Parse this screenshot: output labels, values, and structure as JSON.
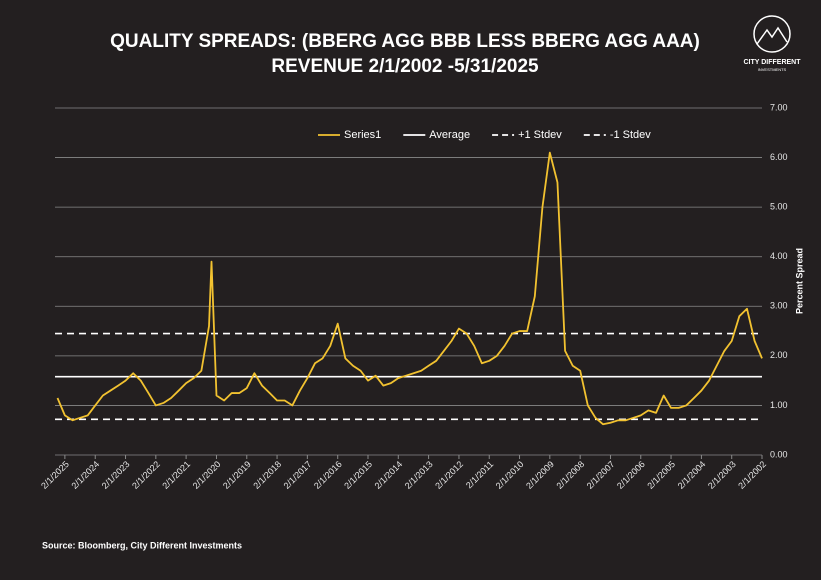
{
  "chart_data": {
    "type": "line",
    "title": "QUALITY SPREADS: (BBERG AGG BBB LESS BBERG AGG AAA)",
    "subtitle": "REVENUE 2/1/2002 -5/31/2025",
    "y_label": "Percent Spread",
    "source": "Source: Bloomberg, City Different Investments",
    "x": [
      "2002-02-01",
      "2002-05-01",
      "2002-08-01",
      "2002-11-01",
      "2003-02-01",
      "2003-05-01",
      "2003-08-01",
      "2003-11-01",
      "2004-02-01",
      "2004-05-01",
      "2004-08-01",
      "2004-11-01",
      "2005-02-01",
      "2005-05-01",
      "2005-08-01",
      "2005-11-01",
      "2006-02-01",
      "2006-05-01",
      "2006-08-01",
      "2006-11-01",
      "2007-02-01",
      "2007-05-01",
      "2007-08-01",
      "2007-11-01",
      "2008-02-01",
      "2008-05-01",
      "2008-08-01",
      "2008-11-01",
      "2009-02-01",
      "2009-05-01",
      "2009-08-01",
      "2009-11-01",
      "2010-02-01",
      "2010-05-01",
      "2010-08-01",
      "2010-11-01",
      "2011-02-01",
      "2011-05-01",
      "2011-08-01",
      "2011-11-01",
      "2012-02-01",
      "2012-05-01",
      "2012-08-01",
      "2012-11-01",
      "2013-02-01",
      "2013-05-01",
      "2013-08-01",
      "2013-11-01",
      "2014-02-01",
      "2014-05-01",
      "2014-08-01",
      "2014-11-01",
      "2015-02-01",
      "2015-05-01",
      "2015-08-01",
      "2015-11-01",
      "2016-02-01",
      "2016-05-01",
      "2016-08-01",
      "2016-11-01",
      "2017-02-01",
      "2017-05-01",
      "2017-08-01",
      "2017-11-01",
      "2018-02-01",
      "2018-05-01",
      "2018-08-01",
      "2018-11-01",
      "2019-02-01",
      "2019-05-01",
      "2019-08-01",
      "2019-11-01",
      "2020-02-01",
      "2020-04-01",
      "2020-05-01",
      "2020-08-01",
      "2020-11-01",
      "2021-02-01",
      "2021-05-01",
      "2021-08-01",
      "2021-11-01",
      "2022-02-01",
      "2022-05-01",
      "2022-08-01",
      "2022-11-01",
      "2023-02-01",
      "2023-05-01",
      "2023-08-01",
      "2023-11-01",
      "2024-02-01",
      "2024-05-01",
      "2024-08-01",
      "2024-11-01",
      "2025-02-01",
      "2025-05-01"
    ],
    "series": [
      {
        "name": "Series1",
        "color": "#f2c230",
        "values": [
          1.95,
          2.3,
          2.95,
          2.8,
          2.3,
          2.1,
          1.8,
          1.5,
          1.3,
          1.15,
          1.0,
          0.95,
          0.95,
          1.2,
          0.85,
          0.9,
          0.8,
          0.75,
          0.7,
          0.7,
          0.65,
          0.62,
          0.75,
          1.0,
          1.7,
          1.8,
          2.1,
          5.5,
          6.1,
          5.0,
          3.2,
          2.5,
          2.5,
          2.45,
          2.2,
          2.0,
          1.9,
          1.85,
          2.2,
          2.45,
          2.55,
          2.3,
          2.1,
          1.9,
          1.8,
          1.7,
          1.65,
          1.6,
          1.55,
          1.45,
          1.4,
          1.6,
          1.5,
          1.7,
          1.8,
          1.95,
          2.65,
          2.2,
          1.95,
          1.85,
          1.55,
          1.3,
          1.0,
          1.1,
          1.1,
          1.25,
          1.4,
          1.65,
          1.35,
          1.25,
          1.25,
          1.1,
          1.2,
          3.9,
          2.6,
          1.7,
          1.55,
          1.45,
          1.3,
          1.15,
          1.05,
          1.0,
          1.25,
          1.5,
          1.65,
          1.5,
          1.4,
          1.3,
          1.2,
          1.0,
          0.8,
          0.75,
          0.7,
          0.8,
          1.15
        ]
      }
    ],
    "reference_lines": [
      {
        "name": "Average",
        "value": 1.58,
        "color": "#ffffff",
        "dashed": false
      },
      {
        "name": "+1 Stdev",
        "value": 2.45,
        "color": "#ffffff",
        "dashed": true
      },
      {
        "name": "-1 Stdev",
        "value": 0.72,
        "color": "#ffffff",
        "dashed": true
      }
    ],
    "xlim": [
      "2025-05-31",
      "2002-02-01"
    ],
    "xticks": [
      {
        "value": "2025-02-01",
        "label": "2/1/2025"
      },
      {
        "value": "2024-02-01",
        "label": "2/1/2024"
      },
      {
        "value": "2023-02-01",
        "label": "2/1/2023"
      },
      {
        "value": "2022-02-01",
        "label": "2/1/2022"
      },
      {
        "value": "2021-02-01",
        "label": "2/1/2021"
      },
      {
        "value": "2020-02-01",
        "label": "2/1/2020"
      },
      {
        "value": "2019-02-01",
        "label": "2/1/2019"
      },
      {
        "value": "2018-02-01",
        "label": "2/1/2018"
      },
      {
        "value": "2017-02-01",
        "label": "2/1/2017"
      },
      {
        "value": "2016-02-01",
        "label": "2/1/2016"
      },
      {
        "value": "2015-02-01",
        "label": "2/1/2015"
      },
      {
        "value": "2014-02-01",
        "label": "2/1/2014"
      },
      {
        "value": "2013-02-01",
        "label": "2/1/2013"
      },
      {
        "value": "2012-02-01",
        "label": "2/1/2012"
      },
      {
        "value": "2011-02-01",
        "label": "2/1/2011"
      },
      {
        "value": "2010-02-01",
        "label": "2/1/2010"
      },
      {
        "value": "2009-02-01",
        "label": "2/1/2009"
      },
      {
        "value": "2008-02-01",
        "label": "2/1/2008"
      },
      {
        "value": "2007-02-01",
        "label": "2/1/2007"
      },
      {
        "value": "2006-02-01",
        "label": "2/1/2006"
      },
      {
        "value": "2005-02-01",
        "label": "2/1/2005"
      },
      {
        "value": "2004-02-01",
        "label": "2/1/2004"
      },
      {
        "value": "2003-02-01",
        "label": "2/1/2003"
      },
      {
        "value": "2002-02-01",
        "label": "2/1/2002"
      }
    ],
    "ylim": [
      0,
      7
    ],
    "yticks": [
      {
        "value": 0,
        "label": "0.00"
      },
      {
        "value": 1,
        "label": "1.00"
      },
      {
        "value": 2,
        "label": "2.00"
      },
      {
        "value": 3,
        "label": "3.00"
      },
      {
        "value": 4,
        "label": "4.00"
      },
      {
        "value": 5,
        "label": "5.00"
      },
      {
        "value": 6,
        "label": "6.00"
      },
      {
        "value": 7,
        "label": "7.00"
      }
    ],
    "grid": true,
    "legend_position": "top"
  },
  "logo": {
    "name": "CITY DIFFERENT",
    "tagline": "INVESTMENTS"
  }
}
